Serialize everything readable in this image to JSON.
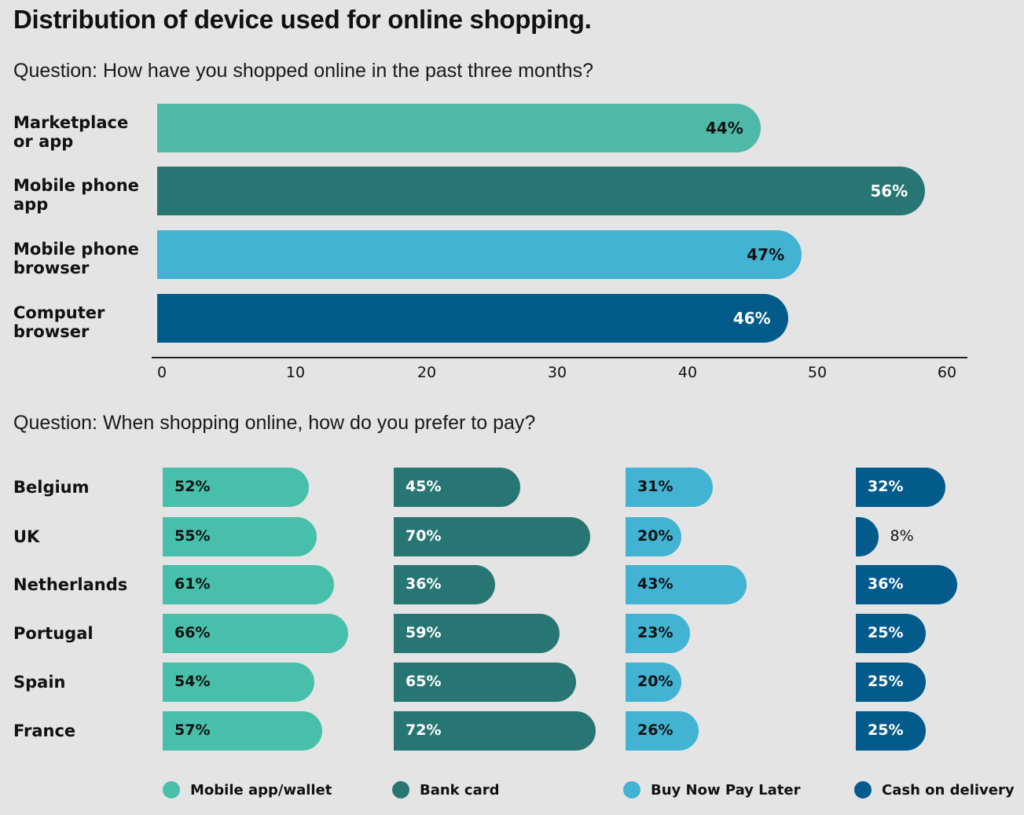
{
  "title": "Distribution of device used for online shopping.",
  "colors": {
    "teal_light": "#4fb9a8",
    "teal_dark": "#287674",
    "sky_blue": "#42b3d2",
    "navy": "#035b8c",
    "mini_teal": "#48bfaa",
    "background": "#e4e4e4"
  },
  "chart_data": [
    {
      "type": "bar",
      "orientation": "horizontal",
      "title": "Question: How have you shopped online in the past three months?",
      "categories": [
        "Marketplace\nor app",
        "Mobile phone\napp",
        "Mobile phone\nbrowser",
        "Computer\nbrowser"
      ],
      "category_lines": [
        [
          "Marketplace",
          "or app"
        ],
        [
          "Mobile phone",
          "app"
        ],
        [
          "Mobile phone",
          "browser"
        ],
        [
          "Computer",
          "browser"
        ]
      ],
      "values": [
        44,
        56,
        47,
        46
      ],
      "labels": [
        "44%",
        "56%",
        "47%",
        "46%"
      ],
      "bar_colors": [
        "#4fb9a8",
        "#287674",
        "#42b3d2",
        "#035b8c"
      ],
      "label_colors": [
        "#111111",
        "#ffffff",
        "#111111",
        "#ffffff"
      ],
      "xlim": [
        0,
        60
      ],
      "xticks": [
        "0",
        "10",
        "20",
        "30",
        "40",
        "50",
        "60"
      ],
      "xlabel": "",
      "ylabel": "",
      "grid": false
    },
    {
      "type": "bar",
      "orientation": "horizontal",
      "title": "Question: When shopping online, how do you prefer to pay?",
      "categories": [
        "Belgium",
        "UK",
        "Netherlands",
        "Portugal",
        "Spain",
        "France"
      ],
      "series": [
        {
          "name": "Mobile app/wallet",
          "color": "#48bfaa",
          "label_color": "#111111",
          "values": [
            52,
            55,
            61,
            66,
            54,
            57
          ]
        },
        {
          "name": "Bank card",
          "color": "#287674",
          "label_color": "#ffffff",
          "values": [
            45,
            70,
            36,
            59,
            65,
            72
          ]
        },
        {
          "name": "Buy Now Pay Later",
          "color": "#42b3d2",
          "label_color": "#111111",
          "values": [
            31,
            20,
            43,
            23,
            20,
            26
          ]
        },
        {
          "name": "Cash on delivery",
          "color": "#035b8c",
          "label_color": "#ffffff",
          "values": [
            32,
            8,
            36,
            25,
            25,
            25
          ]
        }
      ],
      "legend": "bottom",
      "grid": false
    }
  ]
}
